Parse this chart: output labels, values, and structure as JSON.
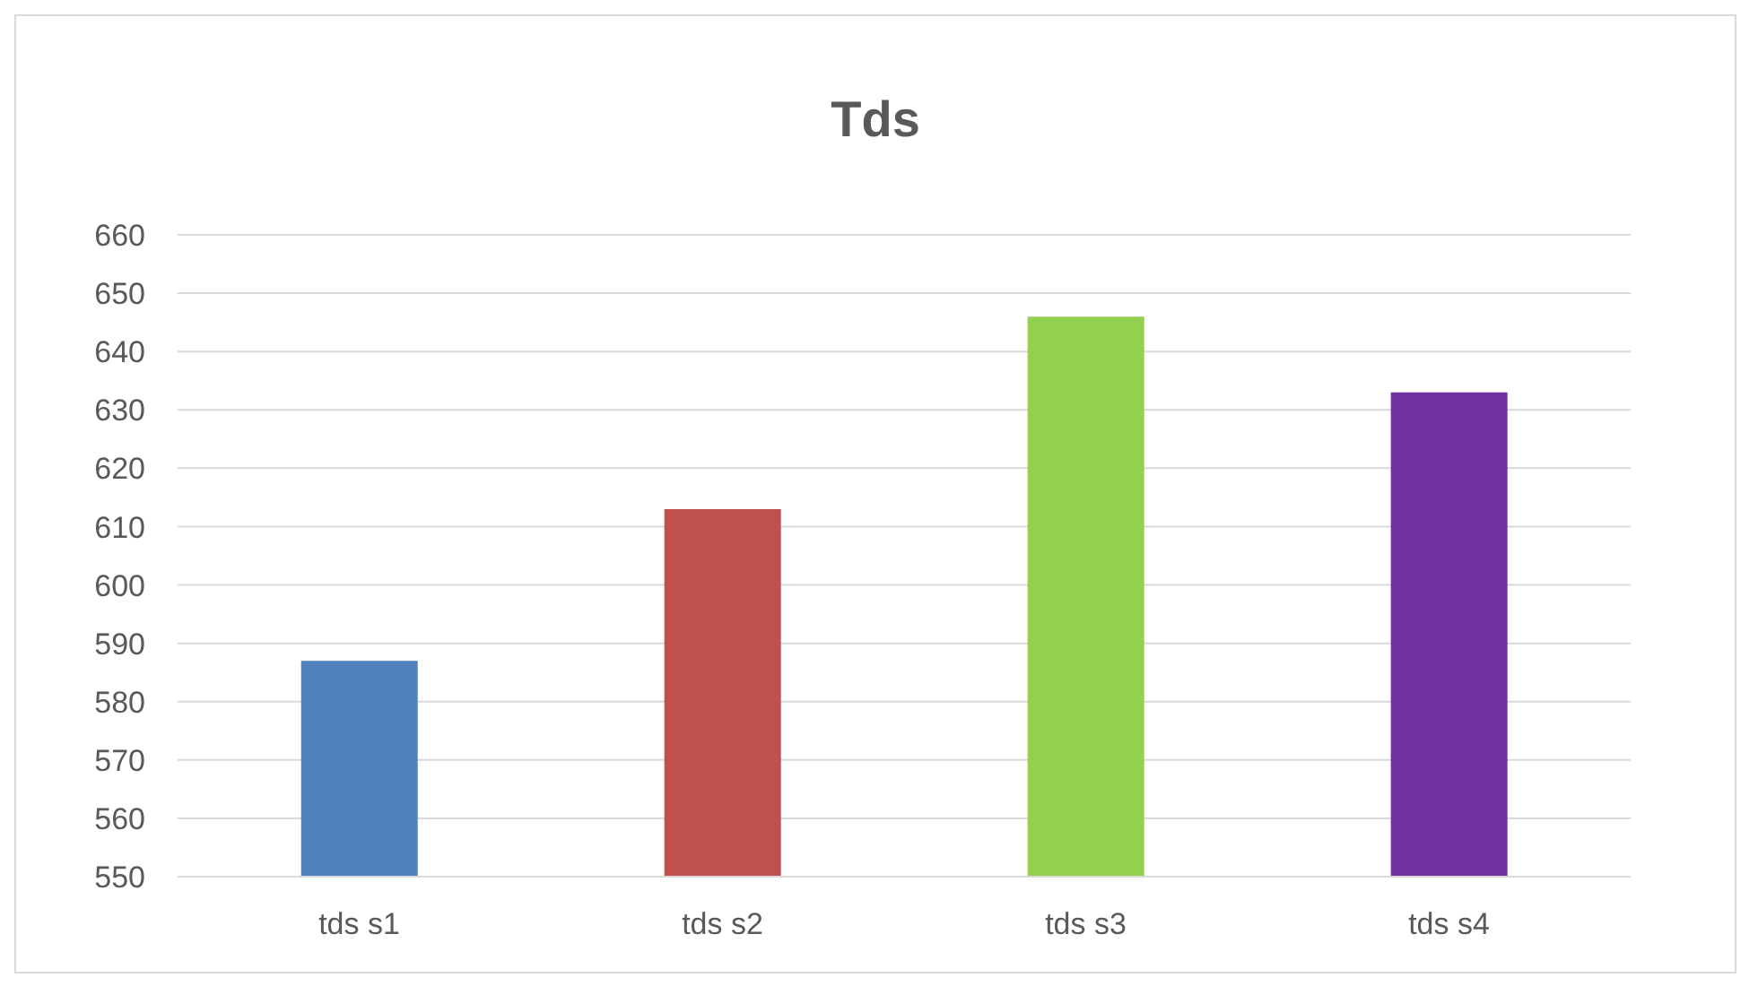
{
  "chart_data": {
    "type": "bar",
    "title": "Tds",
    "categories": [
      "tds s1",
      "tds s2",
      "tds s3",
      "tds s4"
    ],
    "values": [
      587,
      613,
      646,
      633
    ],
    "colors": [
      "#4f81bd",
      "#c0504d",
      "#92d050",
      "#7030a0"
    ],
    "ylim": [
      550,
      660
    ],
    "yticks": [
      550,
      560,
      570,
      580,
      590,
      600,
      610,
      620,
      630,
      640,
      650,
      660
    ],
    "grid": "y"
  }
}
